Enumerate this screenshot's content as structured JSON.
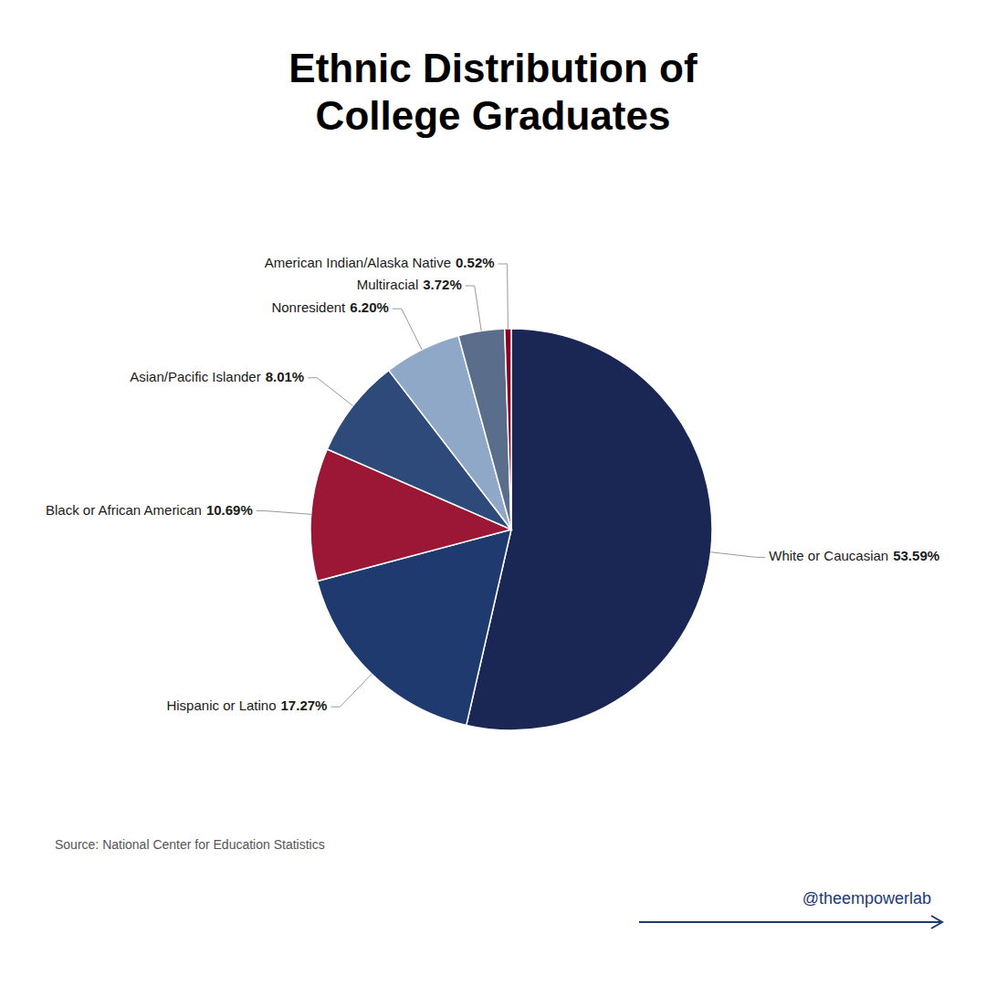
{
  "chart_data": {
    "type": "pie",
    "title": "Ethnic Distribution of\nCollege Graduates",
    "categories": [
      "White or Caucasian",
      "Hispanic or Latino",
      "Black or African American",
      "Asian/Pacific Islander",
      "Nonresident",
      "Multiracial",
      "American Indian/Alaska Native"
    ],
    "values": [
      53.59,
      17.27,
      10.69,
      8.01,
      6.2,
      3.72,
      0.52
    ],
    "value_labels": [
      "53.59%",
      "17.27%",
      "10.69%",
      "8.01%",
      "6.20%",
      "3.72%",
      "0.52%"
    ],
    "colors": [
      "#1a2654",
      "#1e3a6e",
      "#9b1735",
      "#2d4a7a",
      "#8fa8c8",
      "#5a6e8c",
      "#8b0020"
    ],
    "data_labels": true,
    "annotations": [
      "Source: National Center for Education Statistics",
      "@theempowerlab"
    ]
  }
}
